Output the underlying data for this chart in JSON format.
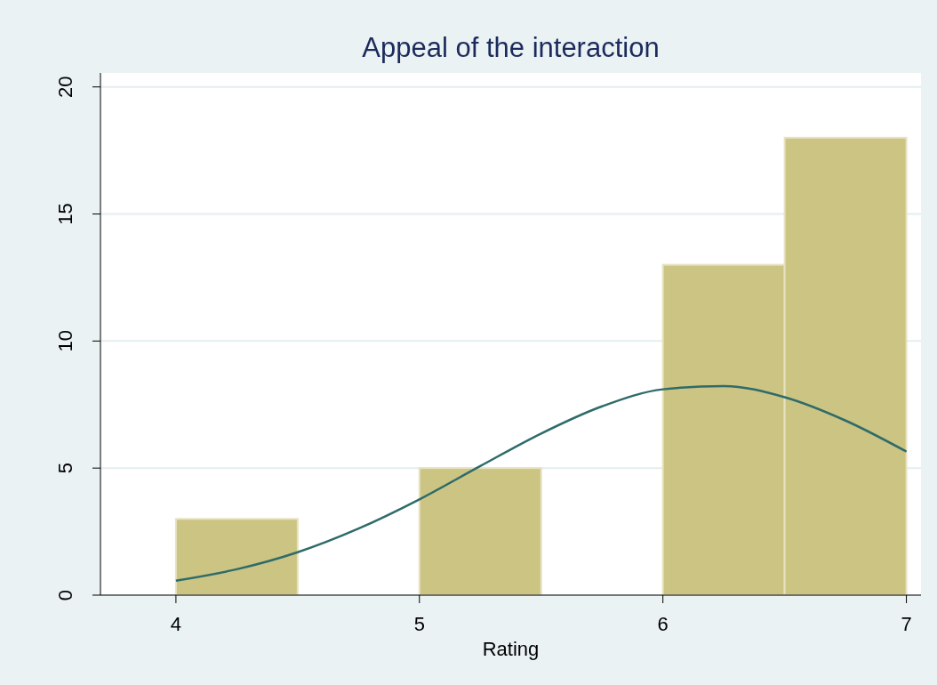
{
  "chart_data": {
    "type": "histogram",
    "title": "Appeal of the interaction",
    "xlabel": "Rating",
    "bins": [
      4,
      4.5,
      5,
      5.5,
      6,
      6.5,
      7
    ],
    "values": [
      3,
      0,
      5,
      0,
      13,
      18
    ],
    "color": "#ccc482",
    "series": [
      {
        "type": "line",
        "color": "#2e6b6a",
        "x": [
          4,
          4.25,
          4.5,
          4.75,
          5,
          5.25,
          5.5,
          5.75,
          6,
          6.25,
          6.5,
          6.75,
          7
        ],
        "values": [
          0.57,
          1.02,
          1.69,
          2.62,
          3.77,
          5.08,
          6.36,
          7.43,
          8.1,
          8.23,
          7.79,
          6.87,
          5.65
        ]
      }
    ],
    "xlim": [
      3.69,
      7.06
    ],
    "xticks": [
      4,
      5,
      6,
      7
    ],
    "ylim": [
      0,
      20.55
    ],
    "yticks": [
      0,
      5,
      10,
      15,
      20
    ],
    "grid": "y"
  }
}
